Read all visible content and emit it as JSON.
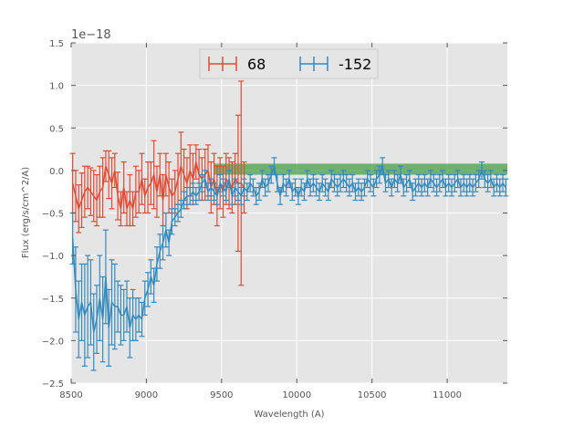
{
  "chart_data": {
    "type": "line",
    "title": "",
    "xlabel": "Wavelength (A)",
    "ylabel": "Flux (erg/s/cm^2/A)",
    "y_offset_label": "1e−18",
    "xlim": [
      8500,
      11400
    ],
    "ylim": [
      -2.5,
      1.5
    ],
    "grid": true,
    "legend_placement": "upper center",
    "x_ticks": [
      8500,
      9000,
      9500,
      10000,
      10500,
      11000
    ],
    "x_tick_labels": [
      "8500",
      "9000",
      "9500",
      "10000",
      "10500",
      "11000"
    ],
    "y_ticks": [
      -2.5,
      -2.0,
      -1.5,
      -1.0,
      -0.5,
      0.0,
      0.5,
      1.0,
      1.5
    ],
    "y_tick_labels": [
      "−2.5",
      "−2.0",
      "−1.5",
      "−1.0",
      "−0.5",
      "0.0",
      "0.5",
      "1.0",
      "1.5"
    ],
    "band": {
      "x": [
        9450,
        11400
      ],
      "y": [
        -0.05,
        0.08
      ],
      "color": "#3c9a3c"
    },
    "series": [
      {
        "name": "68",
        "color": "#e24a33",
        "points": [
          [
            8510,
            -0.15,
            0.35
          ],
          [
            8530,
            -0.3,
            0.3
          ],
          [
            8550,
            -0.45,
            0.28
          ],
          [
            8570,
            -0.35,
            0.32
          ],
          [
            8590,
            -0.25,
            0.3
          ],
          [
            8610,
            -0.2,
            0.25
          ],
          [
            8630,
            -0.25,
            0.28
          ],
          [
            8650,
            -0.3,
            0.3
          ],
          [
            8670,
            -0.35,
            0.3
          ],
          [
            8690,
            -0.25,
            0.3
          ],
          [
            8710,
            -0.2,
            0.35
          ],
          [
            8730,
            0.05,
            0.18
          ],
          [
            8750,
            -0.05,
            0.28
          ],
          [
            8770,
            -0.15,
            0.3
          ],
          [
            8790,
            0.0,
            0.2
          ],
          [
            8810,
            -0.3,
            0.28
          ],
          [
            8830,
            -0.45,
            0.2
          ],
          [
            8850,
            -0.2,
            0.3
          ],
          [
            8870,
            -0.45,
            0.2
          ],
          [
            8890,
            -0.35,
            0.3
          ],
          [
            8910,
            -0.45,
            0.2
          ],
          [
            8930,
            -0.25,
            0.3
          ],
          [
            8950,
            -0.25,
            0.25
          ],
          [
            8970,
            -0.1,
            0.3
          ],
          [
            8990,
            -0.3,
            0.2
          ],
          [
            9010,
            -0.2,
            0.3
          ],
          [
            9030,
            -0.15,
            0.25
          ],
          [
            9050,
            -0.05,
            0.4
          ],
          [
            9070,
            -0.25,
            0.3
          ],
          [
            9090,
            -0.05,
            0.25
          ],
          [
            9110,
            -0.35,
            0.3
          ],
          [
            9130,
            -0.05,
            0.25
          ],
          [
            9150,
            -0.2,
            0.3
          ],
          [
            9170,
            -0.3,
            0.2
          ],
          [
            9190,
            -0.25,
            0.25
          ],
          [
            9210,
            -0.1,
            0.3
          ],
          [
            9230,
            0.05,
            0.4
          ],
          [
            9250,
            -0.05,
            0.3
          ],
          [
            9270,
            -0.15,
            0.3
          ],
          [
            9290,
            0.0,
            0.3
          ],
          [
            9310,
            -0.1,
            0.3
          ],
          [
            9330,
            0.1,
            0.2
          ],
          [
            9350,
            -0.05,
            0.3
          ],
          [
            9370,
            -0.1,
            0.25
          ],
          [
            9390,
            -0.05,
            0.3
          ],
          [
            9410,
            0.0,
            0.3
          ],
          [
            9430,
            -0.2,
            0.3
          ],
          [
            9450,
            -0.1,
            0.3
          ],
          [
            9470,
            -0.3,
            0.35
          ],
          [
            9490,
            -0.15,
            0.3
          ],
          [
            9510,
            -0.25,
            0.3
          ],
          [
            9530,
            -0.1,
            0.3
          ],
          [
            9550,
            -0.15,
            0.3
          ],
          [
            9570,
            -0.2,
            0.3
          ],
          [
            9590,
            -0.1,
            0.3
          ],
          [
            9610,
            -0.15,
            0.8
          ],
          [
            9630,
            -0.15,
            1.2
          ],
          [
            9650,
            -0.2,
            0.3
          ]
        ]
      },
      {
        "name": "-152",
        "color": "#348abd",
        "points": [
          [
            8510,
            -0.8,
            0.3
          ],
          [
            8530,
            -1.4,
            0.5
          ],
          [
            8550,
            -1.75,
            0.45
          ],
          [
            8570,
            -1.55,
            0.45
          ],
          [
            8590,
            -1.7,
            0.6
          ],
          [
            8610,
            -1.6,
            0.6
          ],
          [
            8630,
            -1.55,
            0.5
          ],
          [
            8650,
            -1.9,
            0.45
          ],
          [
            8670,
            -1.75,
            0.4
          ],
          [
            8690,
            -1.5,
            0.5
          ],
          [
            8710,
            -1.75,
            0.5
          ],
          [
            8730,
            -1.25,
            0.55
          ],
          [
            8750,
            -1.85,
            0.45
          ],
          [
            8770,
            -1.55,
            0.5
          ],
          [
            8790,
            -1.6,
            0.5
          ],
          [
            8810,
            -1.6,
            0.3
          ],
          [
            8830,
            -1.7,
            0.35
          ],
          [
            8850,
            -1.7,
            0.3
          ],
          [
            8870,
            -1.6,
            0.3
          ],
          [
            8890,
            -1.85,
            0.35
          ],
          [
            8910,
            -1.7,
            0.3
          ],
          [
            8930,
            -1.75,
            0.25
          ],
          [
            8950,
            -1.7,
            0.2
          ],
          [
            8970,
            -1.75,
            0.2
          ],
          [
            8990,
            -1.5,
            0.2
          ],
          [
            9010,
            -1.4,
            0.2
          ],
          [
            9030,
            -1.25,
            0.2
          ],
          [
            9050,
            -1.35,
            0.2
          ],
          [
            9070,
            -1.1,
            0.2
          ],
          [
            9090,
            -0.95,
            0.2
          ],
          [
            9110,
            -0.85,
            0.2
          ],
          [
            9130,
            -0.7,
            0.2
          ],
          [
            9150,
            -0.85,
            0.15
          ],
          [
            9170,
            -0.6,
            0.15
          ],
          [
            9190,
            -0.55,
            0.1
          ],
          [
            9210,
            -0.5,
            0.1
          ],
          [
            9230,
            -0.45,
            0.1
          ],
          [
            9250,
            -0.35,
            0.1
          ],
          [
            9270,
            -0.3,
            0.1
          ],
          [
            9290,
            -0.3,
            0.1
          ],
          [
            9310,
            -0.25,
            0.1
          ],
          [
            9330,
            -0.3,
            0.1
          ],
          [
            9350,
            -0.25,
            0.1
          ],
          [
            9370,
            -0.15,
            0.1
          ],
          [
            9390,
            -0.1,
            0.1
          ],
          [
            9410,
            -0.25,
            0.1
          ],
          [
            9430,
            -0.2,
            0.1
          ],
          [
            9450,
            -0.25,
            0.1
          ],
          [
            9470,
            -0.3,
            0.1
          ],
          [
            9490,
            -0.15,
            0.1
          ],
          [
            9510,
            -0.2,
            0.1
          ],
          [
            9530,
            -0.25,
            0.1
          ],
          [
            9550,
            -0.1,
            0.1
          ],
          [
            9570,
            -0.3,
            0.1
          ],
          [
            9590,
            -0.2,
            0.1
          ],
          [
            9610,
            -0.25,
            0.1
          ],
          [
            9630,
            -0.3,
            0.1
          ],
          [
            9650,
            -0.2,
            0.1
          ],
          [
            9670,
            -0.25,
            0.1
          ],
          [
            9690,
            -0.15,
            0.1
          ],
          [
            9710,
            -0.2,
            0.1
          ],
          [
            9730,
            -0.3,
            0.1
          ],
          [
            9750,
            -0.25,
            0.1
          ],
          [
            9770,
            -0.1,
            0.1
          ],
          [
            9790,
            -0.2,
            0.1
          ],
          [
            9810,
            -0.15,
            0.1
          ],
          [
            9830,
            -0.05,
            0.1
          ],
          [
            9850,
            0.05,
            0.1
          ],
          [
            9870,
            -0.15,
            0.1
          ],
          [
            9890,
            -0.3,
            0.1
          ],
          [
            9910,
            -0.15,
            0.1
          ],
          [
            9930,
            -0.2,
            0.1
          ],
          [
            9950,
            -0.1,
            0.1
          ],
          [
            9970,
            -0.25,
            0.1
          ],
          [
            9990,
            -0.2,
            0.1
          ],
          [
            10010,
            -0.3,
            0.1
          ],
          [
            10030,
            -0.2,
            0.1
          ],
          [
            10050,
            -0.25,
            0.1
          ],
          [
            10070,
            -0.1,
            0.1
          ],
          [
            10090,
            -0.2,
            0.1
          ],
          [
            10110,
            -0.15,
            0.1
          ],
          [
            10130,
            -0.2,
            0.1
          ],
          [
            10150,
            -0.25,
            0.1
          ],
          [
            10170,
            -0.15,
            0.1
          ],
          [
            10190,
            -0.2,
            0.1
          ],
          [
            10210,
            -0.25,
            0.1
          ],
          [
            10230,
            -0.1,
            0.1
          ],
          [
            10250,
            -0.15,
            0.1
          ],
          [
            10270,
            -0.2,
            0.1
          ],
          [
            10290,
            -0.15,
            0.1
          ],
          [
            10310,
            -0.1,
            0.1
          ],
          [
            10330,
            -0.15,
            0.1
          ],
          [
            10350,
            -0.2,
            0.1
          ],
          [
            10370,
            -0.15,
            0.1
          ],
          [
            10390,
            -0.25,
            0.1
          ],
          [
            10410,
            -0.2,
            0.1
          ],
          [
            10430,
            -0.25,
            0.1
          ],
          [
            10450,
            -0.2,
            0.1
          ],
          [
            10470,
            -0.1,
            0.1
          ],
          [
            10490,
            -0.15,
            0.1
          ],
          [
            10510,
            -0.2,
            0.1
          ],
          [
            10530,
            -0.1,
            0.1
          ],
          [
            10550,
            -0.05,
            0.1
          ],
          [
            10570,
            0.05,
            0.1
          ],
          [
            10590,
            -0.15,
            0.1
          ],
          [
            10610,
            -0.1,
            0.1
          ],
          [
            10630,
            -0.2,
            0.1
          ],
          [
            10650,
            -0.1,
            0.1
          ],
          [
            10670,
            -0.15,
            0.1
          ],
          [
            10690,
            -0.05,
            0.1
          ],
          [
            10710,
            -0.2,
            0.1
          ],
          [
            10730,
            -0.15,
            0.1
          ],
          [
            10750,
            -0.1,
            0.1
          ],
          [
            10770,
            -0.25,
            0.1
          ],
          [
            10790,
            -0.2,
            0.1
          ],
          [
            10810,
            -0.15,
            0.1
          ],
          [
            10830,
            -0.2,
            0.1
          ],
          [
            10850,
            -0.15,
            0.1
          ],
          [
            10870,
            -0.2,
            0.1
          ],
          [
            10890,
            -0.1,
            0.1
          ],
          [
            10910,
            -0.15,
            0.1
          ],
          [
            10930,
            -0.2,
            0.1
          ],
          [
            10950,
            -0.15,
            0.1
          ],
          [
            10970,
            -0.1,
            0.1
          ],
          [
            10990,
            -0.2,
            0.1
          ],
          [
            11010,
            -0.15,
            0.1
          ],
          [
            11030,
            -0.2,
            0.1
          ],
          [
            11050,
            -0.15,
            0.1
          ],
          [
            11070,
            -0.1,
            0.1
          ],
          [
            11090,
            -0.2,
            0.1
          ],
          [
            11110,
            -0.15,
            0.1
          ],
          [
            11130,
            -0.2,
            0.1
          ],
          [
            11150,
            -0.15,
            0.1
          ],
          [
            11170,
            -0.2,
            0.1
          ],
          [
            11190,
            -0.15,
            0.1
          ],
          [
            11210,
            -0.1,
            0.1
          ],
          [
            11230,
            0.0,
            0.1
          ],
          [
            11250,
            -0.1,
            0.1
          ],
          [
            11270,
            -0.15,
            0.1
          ],
          [
            11290,
            -0.1,
            0.1
          ],
          [
            11310,
            -0.2,
            0.1
          ],
          [
            11330,
            -0.15,
            0.1
          ],
          [
            11350,
            -0.2,
            0.1
          ],
          [
            11370,
            -0.15,
            0.1
          ],
          [
            11390,
            -0.2,
            0.1
          ]
        ]
      }
    ]
  }
}
